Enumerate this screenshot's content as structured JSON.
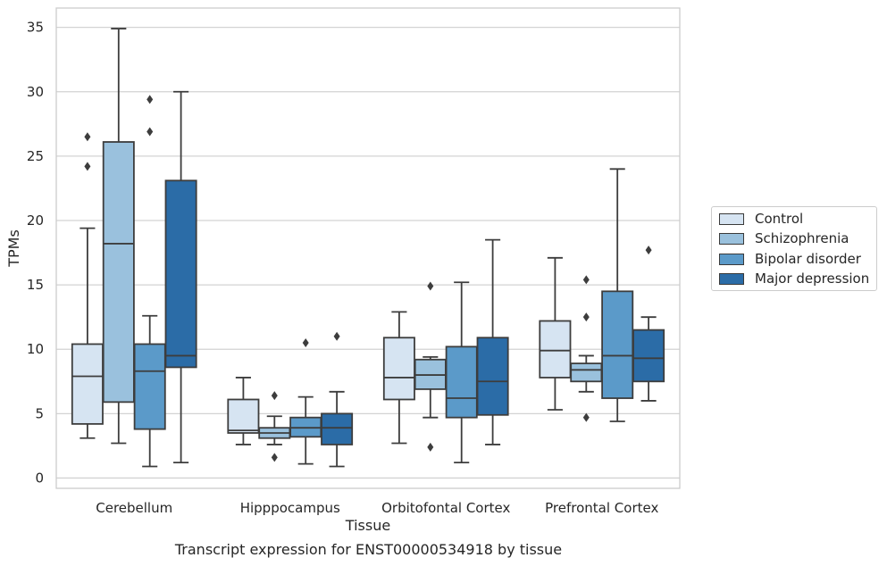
{
  "chart_data": {
    "type": "box",
    "title": "",
    "caption": "Transcript expression for ENST00000534918 by tissue",
    "xlabel": "Tissue",
    "ylabel": "TPMs",
    "ylim": [
      -0.8,
      36.5
    ],
    "yticks": [
      0,
      5,
      10,
      15,
      20,
      25,
      30,
      35
    ],
    "grid": "horizontal",
    "legend_position": "right-center",
    "categories": [
      "Cerebellum",
      "Hipppocampus",
      "Orbitofontal Cortex",
      "Prefrontal Cortex"
    ],
    "series": [
      {
        "name": "Control",
        "color": "#d6e4f2",
        "boxes": [
          {
            "whislo": 3.1,
            "q1": 4.2,
            "med": 7.9,
            "q3": 10.4,
            "whishi": 19.4,
            "fliers": [
              24.2,
              26.5
            ]
          },
          {
            "whislo": 2.6,
            "q1": 3.5,
            "med": 3.7,
            "q3": 6.1,
            "whishi": 7.8,
            "fliers": []
          },
          {
            "whislo": 2.7,
            "q1": 6.1,
            "med": 7.8,
            "q3": 10.9,
            "whishi": 12.9,
            "fliers": []
          },
          {
            "whislo": 5.3,
            "q1": 7.8,
            "med": 9.9,
            "q3": 12.2,
            "whishi": 17.1,
            "fliers": []
          }
        ]
      },
      {
        "name": "Schizophrenia",
        "color": "#9ac1dd",
        "boxes": [
          {
            "whislo": 2.7,
            "q1": 5.9,
            "med": 18.2,
            "q3": 26.1,
            "whishi": 34.9,
            "fliers": []
          },
          {
            "whislo": 2.6,
            "q1": 3.1,
            "med": 3.5,
            "q3": 3.9,
            "whishi": 4.8,
            "fliers": [
              1.6,
              6.4
            ]
          },
          {
            "whislo": 4.7,
            "q1": 6.9,
            "med": 8.0,
            "q3": 9.2,
            "whishi": 9.4,
            "fliers": [
              2.4,
              14.9
            ]
          },
          {
            "whislo": 6.7,
            "q1": 7.5,
            "med": 8.4,
            "q3": 8.9,
            "whishi": 9.5,
            "fliers": [
              4.7,
              12.5,
              15.4
            ]
          }
        ]
      },
      {
        "name": "Bipolar disorder",
        "color": "#5b9ac9",
        "boxes": [
          {
            "whislo": 0.9,
            "q1": 3.8,
            "med": 8.3,
            "q3": 10.4,
            "whishi": 12.6,
            "fliers": [
              26.9,
              29.4
            ]
          },
          {
            "whislo": 1.1,
            "q1": 3.2,
            "med": 3.9,
            "q3": 4.7,
            "whishi": 6.3,
            "fliers": [
              10.5
            ]
          },
          {
            "whislo": 1.2,
            "q1": 4.7,
            "med": 6.2,
            "q3": 10.2,
            "whishi": 15.2,
            "fliers": []
          },
          {
            "whislo": 4.4,
            "q1": 6.2,
            "med": 9.5,
            "q3": 14.5,
            "whishi": 24.0,
            "fliers": []
          }
        ]
      },
      {
        "name": "Major depression",
        "color": "#2b6ca7",
        "boxes": [
          {
            "whislo": 1.2,
            "q1": 8.6,
            "med": 9.5,
            "q3": 23.1,
            "whishi": 30.0,
            "fliers": []
          },
          {
            "whislo": 0.9,
            "q1": 2.6,
            "med": 3.9,
            "q3": 5.0,
            "whishi": 6.7,
            "fliers": [
              11.0
            ]
          },
          {
            "whislo": 2.6,
            "q1": 4.9,
            "med": 7.5,
            "q3": 10.9,
            "whishi": 18.5,
            "fliers": []
          },
          {
            "whislo": 6.0,
            "q1": 7.5,
            "med": 9.3,
            "q3": 11.5,
            "whishi": 12.5,
            "fliers": [
              17.7
            ]
          }
        ]
      }
    ]
  }
}
